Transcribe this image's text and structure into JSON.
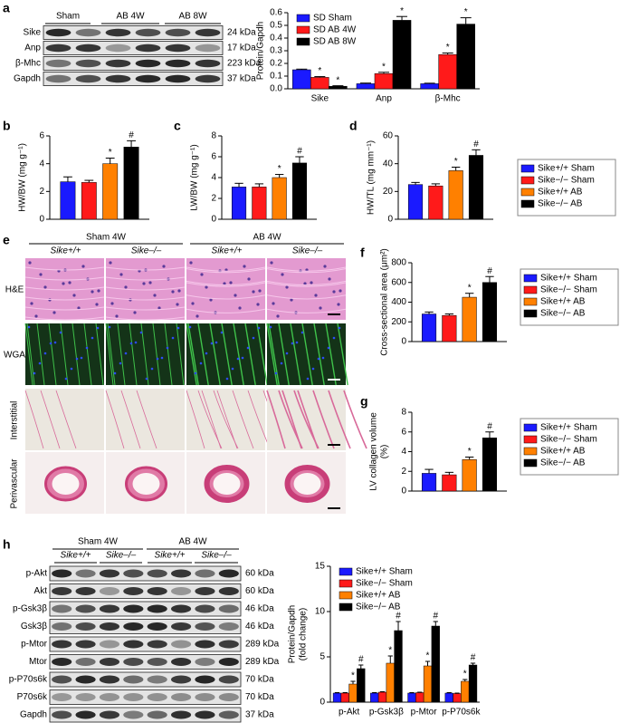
{
  "blots": [
    {
      "panel": "a",
      "groups": [
        "Sham",
        "AB 4W",
        "AB 8W"
      ],
      "rows": [
        {
          "label": "Sike",
          "kda": "24 kDa"
        },
        {
          "label": "Anp",
          "kda": "17 kDa"
        },
        {
          "label": "β-Mhc",
          "kda": "223 kDa"
        },
        {
          "label": "Gapdh",
          "kda": "37 kDa"
        }
      ]
    },
    {
      "panel": "h",
      "groups": [
        "Sham 4W",
        "AB 4W"
      ],
      "columns": [
        "Sike+/+",
        "Sike–/–",
        "Sike+/+",
        "Sike–/–"
      ],
      "rows": [
        {
          "label": "p-Akt",
          "kda": "60 kDa"
        },
        {
          "label": "Akt",
          "kda": "60 kDa"
        },
        {
          "label": "p-Gsk3β",
          "kda": "46 kDa"
        },
        {
          "label": "Gsk3β",
          "kda": "46 kDa"
        },
        {
          "label": "p-Mtor",
          "kda": "289 kDa"
        },
        {
          "label": "Mtor",
          "kda": "289 kDa"
        },
        {
          "label": "p-P70s6k",
          "kda": "70 kDa"
        },
        {
          "label": "P70s6k",
          "kda": "70 kDa"
        },
        {
          "label": "Gapdh",
          "kda": "37 kDa"
        }
      ]
    }
  ],
  "histology": {
    "panel": "e",
    "groups": [
      "Sham 4W",
      "AB 4W"
    ],
    "columns": [
      "Sike+/+",
      "Sike–/–",
      "Sike+/+",
      "Sike–/–"
    ],
    "rows": [
      "H&E",
      "WGA",
      "Interstitial",
      "Perivascular"
    ]
  },
  "chart_data": [
    {
      "type": "bar",
      "ylabel": "Protein/Gapdh",
      "categories": [
        "Sike",
        "Anp",
        "β-Mhc"
      ],
      "ylim": [
        0,
        0.6
      ],
      "yticks": [
        {
          "value": 0,
          "label": "0.0"
        },
        {
          "value": 0.1,
          "label": "0.1"
        },
        {
          "value": 0.2,
          "label": "0.2"
        },
        {
          "value": 0.3,
          "label": "0.3"
        },
        {
          "value": 0.4,
          "label": "0.4"
        },
        {
          "value": 0.5,
          "label": "0.5"
        },
        {
          "value": 0.6,
          "label": "0.6"
        }
      ],
      "legend": "inside-top-left",
      "series": [
        {
          "name": "SD Sham",
          "color": "#1a1aff",
          "values": [
            0.15,
            0.04,
            0.04
          ],
          "errors": [
            0.005,
            0.005,
            0.004
          ],
          "annotations": [
            null,
            null,
            null
          ]
        },
        {
          "name": "SD AB 4W",
          "color": "#ff1a1a",
          "values": [
            0.09,
            0.12,
            0.27
          ],
          "errors": [
            0.006,
            0.01,
            0.012
          ],
          "annotations": [
            "*",
            "*",
            "*"
          ]
        },
        {
          "name": "SD AB 8W",
          "color": "#000000",
          "values": [
            0.02,
            0.54,
            0.51
          ],
          "errors": [
            0.004,
            0.03,
            0.05
          ],
          "annotations": [
            "*",
            "*",
            "*"
          ]
        }
      ]
    },
    {
      "type": "bar",
      "panel": "b",
      "ylabel": "HW/BW (mg g⁻¹)",
      "categories": [
        null
      ],
      "ylim": [
        0,
        6
      ],
      "yticks": [
        0,
        2,
        4,
        6
      ],
      "series": [
        {
          "color": "#1a1aff",
          "values": [
            2.7
          ],
          "errors": [
            0.35
          ],
          "annotations": [
            null
          ]
        },
        {
          "color": "#ff1a1a",
          "values": [
            2.65
          ],
          "errors": [
            0.15
          ],
          "annotations": [
            null
          ]
        },
        {
          "color": "#ff8000",
          "values": [
            4.0
          ],
          "errors": [
            0.4
          ],
          "annotations": [
            "*"
          ]
        },
        {
          "color": "#000000",
          "values": [
            5.2
          ],
          "errors": [
            0.45
          ],
          "annotations": [
            "#"
          ]
        }
      ]
    },
    {
      "type": "bar",
      "panel": "c",
      "ylabel": "LW/BW (mg g⁻¹)",
      "categories": [
        null
      ],
      "ylim": [
        0,
        8
      ],
      "yticks": [
        0,
        2,
        4,
        6,
        8
      ],
      "series": [
        {
          "color": "#1a1aff",
          "values": [
            3.1
          ],
          "errors": [
            0.35
          ],
          "annotations": [
            null
          ]
        },
        {
          "color": "#ff1a1a",
          "values": [
            3.1
          ],
          "errors": [
            0.3
          ],
          "annotations": [
            null
          ]
        },
        {
          "color": "#ff8000",
          "values": [
            4.0
          ],
          "errors": [
            0.3
          ],
          "annotations": [
            "*"
          ]
        },
        {
          "color": "#000000",
          "values": [
            5.4
          ],
          "errors": [
            0.6
          ],
          "annotations": [
            "#"
          ]
        }
      ]
    },
    {
      "type": "bar",
      "panel": "d",
      "ylabel": "HW/TL (mg mm⁻¹)",
      "categories": [
        null
      ],
      "ylim": [
        0,
        60
      ],
      "yticks": [
        0,
        20,
        40,
        60
      ],
      "legend": "right",
      "series": [
        {
          "name": "Sike+/+ Sham",
          "color": "#1a1aff",
          "values": [
            25
          ],
          "errors": [
            1.5
          ],
          "annotations": [
            null
          ]
        },
        {
          "name": "Sike−/− Sham",
          "color": "#ff1a1a",
          "values": [
            24
          ],
          "errors": [
            1.5
          ],
          "annotations": [
            null
          ]
        },
        {
          "name": "Sike+/+ AB",
          "color": "#ff8000",
          "values": [
            35
          ],
          "errors": [
            2.5
          ],
          "annotations": [
            "*"
          ]
        },
        {
          "name": "Sike−/− AB",
          "color": "#000000",
          "values": [
            46
          ],
          "errors": [
            4
          ],
          "annotations": [
            "#"
          ]
        }
      ]
    },
    {
      "type": "bar",
      "panel": "f",
      "ylabel": "Cross-sectional area (μm²)",
      "categories": [
        null
      ],
      "ylim": [
        0,
        800
      ],
      "yticks": [
        0,
        200,
        400,
        600,
        800
      ],
      "legend": "right",
      "series": [
        {
          "name": "Sike+/+ Sham",
          "color": "#1a1aff",
          "values": [
            280
          ],
          "errors": [
            20
          ],
          "annotations": [
            null
          ]
        },
        {
          "name": "Sike−/− Sham",
          "color": "#ff1a1a",
          "values": [
            265
          ],
          "errors": [
            15
          ],
          "annotations": [
            null
          ]
        },
        {
          "name": "Sike+/+ AB",
          "color": "#ff8000",
          "values": [
            450
          ],
          "errors": [
            40
          ],
          "annotations": [
            "*"
          ]
        },
        {
          "name": "Sike−/− AB",
          "color": "#000000",
          "values": [
            600
          ],
          "errors": [
            60
          ],
          "annotations": [
            "#"
          ]
        }
      ]
    },
    {
      "type": "bar",
      "panel": "g",
      "ylabel": [
        "LV collagen volume",
        "(%)"
      ],
      "categories": [
        null
      ],
      "ylim": [
        0,
        8
      ],
      "yticks": [
        0,
        2,
        4,
        6,
        8
      ],
      "legend": "right",
      "series": [
        {
          "name": "Sike+/+ Sham",
          "color": "#1a1aff",
          "values": [
            1.8
          ],
          "errors": [
            0.4
          ],
          "annotations": [
            null
          ]
        },
        {
          "name": "Sike−/− Sham",
          "color": "#ff1a1a",
          "values": [
            1.65
          ],
          "errors": [
            0.25
          ],
          "annotations": [
            null
          ]
        },
        {
          "name": "Sike+/+ AB",
          "color": "#ff8000",
          "values": [
            3.2
          ],
          "errors": [
            0.25
          ],
          "annotations": [
            "*"
          ]
        },
        {
          "name": "Sike−/− AB",
          "color": "#000000",
          "values": [
            5.4
          ],
          "errors": [
            0.6
          ],
          "annotations": [
            "#"
          ]
        }
      ]
    },
    {
      "type": "bar",
      "ylabel": [
        "Protein/Gapdh",
        "(fold change)"
      ],
      "categories": [
        "p-Akt",
        "p-Gsk3β",
        "p-Mtor",
        "p-P70s6k"
      ],
      "ylim": [
        0,
        15
      ],
      "yticks": [
        0,
        5,
        10,
        15
      ],
      "legend": "inside-top-left",
      "series": [
        {
          "name": "Sike+/+ Sham",
          "color": "#1a1aff",
          "values": [
            1,
            1,
            1,
            1
          ],
          "errors": [
            0.05,
            0.05,
            0.05,
            0.05
          ],
          "annotations": [
            null,
            null,
            null,
            null
          ]
        },
        {
          "name": "Sike−/− Sham",
          "color": "#ff1a1a",
          "values": [
            1,
            1.1,
            1.05,
            0.95
          ],
          "errors": [
            0.05,
            0.05,
            0.05,
            0.05
          ],
          "annotations": [
            null,
            null,
            null,
            null
          ]
        },
        {
          "name": "Sike+/+ AB",
          "color": "#ff8000",
          "values": [
            2.0,
            4.3,
            4.0,
            2.3
          ],
          "errors": [
            0.3,
            0.8,
            0.5,
            0.2
          ],
          "annotations": [
            "*",
            "*",
            "*",
            "*"
          ]
        },
        {
          "name": "Sike−/− AB",
          "color": "#000000",
          "values": [
            3.7,
            7.9,
            8.4,
            4.1
          ],
          "errors": [
            0.4,
            1.0,
            0.5,
            0.2
          ],
          "annotations": [
            "#",
            "#",
            "#",
            "#"
          ]
        }
      ]
    }
  ]
}
